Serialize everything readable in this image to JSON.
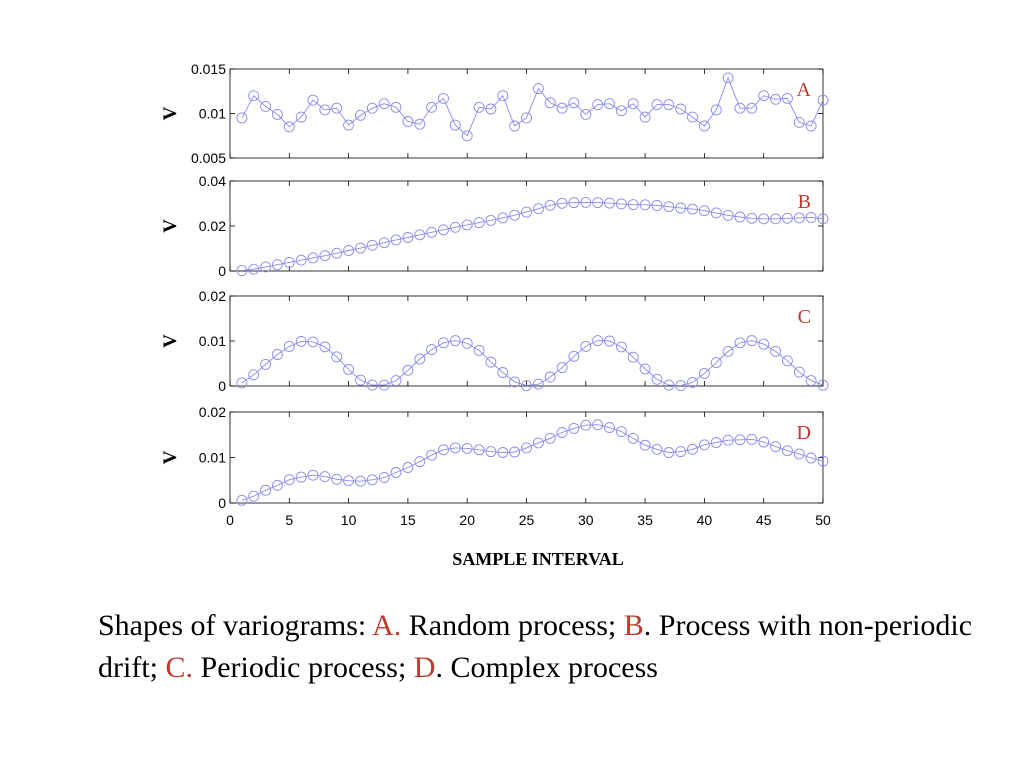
{
  "colors": {
    "marker": "#8a8af0",
    "accent": "#c0392b",
    "axis": "#000000"
  },
  "chart_data": [
    {
      "type": "line",
      "panel": "A",
      "ylabel": "V",
      "ylim": [
        0.005,
        0.015
      ],
      "yticks": [
        "0.005",
        "0.01",
        "0.015"
      ],
      "ytick_values": [
        0.005,
        0.01,
        0.015
      ],
      "x": [
        1,
        2,
        3,
        4,
        5,
        6,
        7,
        8,
        9,
        10,
        11,
        12,
        13,
        14,
        15,
        16,
        17,
        18,
        19,
        20,
        21,
        22,
        23,
        24,
        25,
        26,
        27,
        28,
        29,
        30,
        31,
        32,
        33,
        34,
        35,
        36,
        37,
        38,
        39,
        40,
        41,
        42,
        43,
        44,
        45,
        46,
        47,
        48,
        49,
        50
      ],
      "values": [
        0.0095,
        0.012,
        0.0108,
        0.0099,
        0.0085,
        0.0096,
        0.0115,
        0.0104,
        0.0106,
        0.0087,
        0.0098,
        0.0106,
        0.0111,
        0.0107,
        0.0091,
        0.0088,
        0.0107,
        0.0117,
        0.0087,
        0.0075,
        0.0107,
        0.0105,
        0.012,
        0.0086,
        0.0095,
        0.0128,
        0.0112,
        0.0106,
        0.0112,
        0.0099,
        0.011,
        0.0111,
        0.0103,
        0.0111,
        0.0096,
        0.011,
        0.011,
        0.0105,
        0.0096,
        0.0086,
        0.0104,
        0.014,
        0.0106,
        0.0106,
        0.012,
        0.0116,
        0.0117,
        0.009,
        0.0086,
        0.0115
      ]
    },
    {
      "type": "line",
      "panel": "B",
      "ylabel": "V",
      "ylim": [
        0,
        0.04
      ],
      "yticks": [
        "0",
        "0.02",
        "0.04"
      ],
      "ytick_values": [
        0,
        0.02,
        0.04
      ],
      "x": [
        1,
        2,
        3,
        4,
        5,
        6,
        7,
        8,
        9,
        10,
        11,
        12,
        13,
        14,
        15,
        16,
        17,
        18,
        19,
        20,
        21,
        22,
        23,
        24,
        25,
        26,
        27,
        28,
        29,
        30,
        31,
        32,
        33,
        34,
        35,
        36,
        37,
        38,
        39,
        40,
        41,
        42,
        43,
        44,
        45,
        46,
        47,
        48,
        49,
        50
      ],
      "values": [
        0.0002,
        0.0008,
        0.0018,
        0.0028,
        0.0038,
        0.0048,
        0.0058,
        0.0068,
        0.0079,
        0.0091,
        0.0102,
        0.0114,
        0.0126,
        0.0138,
        0.0149,
        0.0161,
        0.0172,
        0.0183,
        0.0194,
        0.0205,
        0.0215,
        0.0225,
        0.0236,
        0.0248,
        0.0262,
        0.0277,
        0.0292,
        0.0301,
        0.0304,
        0.0305,
        0.0304,
        0.0302,
        0.0298,
        0.0295,
        0.0294,
        0.0291,
        0.0286,
        0.028,
        0.0275,
        0.0268,
        0.0258,
        0.0247,
        0.024,
        0.0234,
        0.0232,
        0.0232,
        0.0234,
        0.0236,
        0.0238,
        0.0232
      ]
    },
    {
      "type": "line",
      "panel": "C",
      "ylabel": "V",
      "ylim": [
        0,
        0.02
      ],
      "yticks": [
        "0",
        "0.01",
        "0.02"
      ],
      "ytick_values": [
        0,
        0.01,
        0.02
      ],
      "x": [
        1,
        2,
        3,
        4,
        5,
        6,
        7,
        8,
        9,
        10,
        11,
        12,
        13,
        14,
        15,
        16,
        17,
        18,
        19,
        20,
        21,
        22,
        23,
        24,
        25,
        26,
        27,
        28,
        29,
        30,
        31,
        32,
        33,
        34,
        35,
        36,
        37,
        38,
        39,
        40,
        41,
        42,
        43,
        44,
        45,
        46,
        47,
        48,
        49,
        50
      ],
      "values": [
        0.0007,
        0.0025,
        0.0048,
        0.007,
        0.0088,
        0.0099,
        0.0098,
        0.0087,
        0.0065,
        0.0037,
        0.0013,
        0.0002,
        0.0002,
        0.0012,
        0.0035,
        0.006,
        0.0081,
        0.0096,
        0.0101,
        0.0095,
        0.0079,
        0.0053,
        0.003,
        0.0009,
        0.0001,
        0.0004,
        0.002,
        0.0041,
        0.0066,
        0.0088,
        0.0101,
        0.01,
        0.0087,
        0.0064,
        0.0038,
        0.0015,
        0.0002,
        0.0001,
        0.0008,
        0.0028,
        0.0052,
        0.0077,
        0.0096,
        0.0101,
        0.0093,
        0.0077,
        0.0056,
        0.0031,
        0.0012,
        0.0002
      ]
    },
    {
      "type": "line",
      "panel": "D",
      "ylabel": "V",
      "ylim": [
        0,
        0.02
      ],
      "yticks": [
        "0",
        "0.01",
        "0.02"
      ],
      "ytick_values": [
        0,
        0.01,
        0.02
      ],
      "x": [
        1,
        2,
        3,
        4,
        5,
        6,
        7,
        8,
        9,
        10,
        11,
        12,
        13,
        14,
        15,
        16,
        17,
        18,
        19,
        20,
        21,
        22,
        23,
        24,
        25,
        26,
        27,
        28,
        29,
        30,
        31,
        32,
        33,
        34,
        35,
        36,
        37,
        38,
        39,
        40,
        41,
        42,
        43,
        44,
        45,
        46,
        47,
        48,
        49,
        50
      ],
      "values": [
        0.0006,
        0.0015,
        0.0028,
        0.0039,
        0.0051,
        0.0057,
        0.0061,
        0.0058,
        0.0052,
        0.0049,
        0.0048,
        0.0051,
        0.0056,
        0.0067,
        0.0078,
        0.0091,
        0.0105,
        0.0117,
        0.0121,
        0.012,
        0.0117,
        0.0113,
        0.0111,
        0.0112,
        0.0121,
        0.0132,
        0.0142,
        0.0155,
        0.0164,
        0.0171,
        0.0172,
        0.0166,
        0.0157,
        0.0142,
        0.0127,
        0.0118,
        0.0111,
        0.0113,
        0.0118,
        0.0128,
        0.0133,
        0.0138,
        0.0139,
        0.014,
        0.0134,
        0.0124,
        0.0115,
        0.0108,
        0.0099,
        0.0092
      ]
    }
  ],
  "xaxis": {
    "ticks": [
      "0",
      "5",
      "10",
      "15",
      "20",
      "25",
      "30",
      "35",
      "40",
      "45",
      "50"
    ],
    "tick_values": [
      0,
      5,
      10,
      15,
      20,
      25,
      30,
      35,
      40,
      45,
      50
    ],
    "xlim": [
      0,
      50
    ],
    "label": "SAMPLE INTERVAL"
  },
  "caption": {
    "p1": "Shapes of variograms: ",
    "a": "A.",
    "p2": " Random process; ",
    "b": "B",
    "p3": ". Process with non-periodic drift; ",
    "c": "C.",
    "p4": " Periodic process; ",
    "d": "D",
    "p5": ". Complex process"
  }
}
